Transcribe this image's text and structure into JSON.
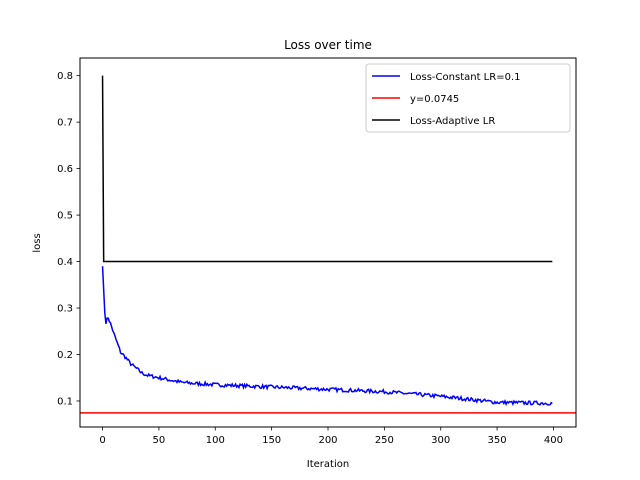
{
  "chart_data": {
    "type": "line",
    "title": "Loss over time",
    "xlabel": "Iteration",
    "ylabel": "loss",
    "xlim": [
      -20,
      420
    ],
    "ylim": [
      0.044,
      0.838
    ],
    "xticks": [
      0,
      50,
      100,
      150,
      200,
      250,
      300,
      350,
      400
    ],
    "yticks": [
      0.1,
      0.2,
      0.3,
      0.4,
      0.5,
      0.6,
      0.7,
      0.8
    ],
    "grid": false,
    "legend_position": "top-right",
    "series": [
      {
        "name": "Loss-Constant LR=0.1",
        "color": "#0000ff",
        "keypoints": [
          [
            0,
            0.39
          ],
          [
            2,
            0.29
          ],
          [
            3,
            0.27
          ],
          [
            5,
            0.28
          ],
          [
            8,
            0.26
          ],
          [
            10,
            0.245
          ],
          [
            13,
            0.225
          ],
          [
            16,
            0.205
          ],
          [
            20,
            0.195
          ],
          [
            25,
            0.18
          ],
          [
            30,
            0.17
          ],
          [
            35,
            0.16
          ],
          [
            40,
            0.155
          ],
          [
            50,
            0.15
          ],
          [
            60,
            0.145
          ],
          [
            70,
            0.14
          ],
          [
            80,
            0.138
          ],
          [
            100,
            0.135
          ],
          [
            150,
            0.13
          ],
          [
            200,
            0.125
          ],
          [
            250,
            0.12
          ],
          [
            300,
            0.11
          ],
          [
            320,
            0.105
          ],
          [
            350,
            0.097
          ],
          [
            400,
            0.095
          ]
        ],
        "x_range": [
          0,
          399
        ],
        "noise_amplitude": 0.004
      },
      {
        "name": "y=0.0745",
        "color": "#ff0000",
        "y": 0.0745
      },
      {
        "name": "Loss-Adaptive LR",
        "color": "#000000",
        "x": [
          0,
          1,
          399
        ],
        "y": [
          0.8,
          0.4,
          0.4
        ]
      }
    ]
  }
}
